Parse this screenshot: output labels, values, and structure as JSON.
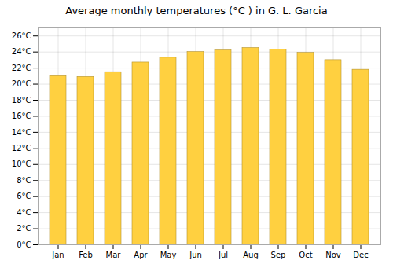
{
  "chart_data": {
    "type": "bar",
    "title": "Average monthly temperatures (°C ) in G. L. Garcia",
    "categories": [
      "Jan",
      "Feb",
      "Mar",
      "Apr",
      "May",
      "Jun",
      "Jul",
      "Aug",
      "Sep",
      "Oct",
      "Nov",
      "Dec"
    ],
    "values": [
      21.0,
      20.9,
      21.5,
      22.7,
      23.3,
      24.0,
      24.2,
      24.5,
      24.3,
      23.9,
      23.0,
      21.8
    ],
    "color": "#FFD040",
    "ylim": [
      0,
      27
    ],
    "yticks": [
      {
        "value": 0,
        "label": "0°C"
      },
      {
        "value": 2,
        "label": "2°C"
      },
      {
        "value": 4,
        "label": "4°C"
      },
      {
        "value": 6,
        "label": "6°C"
      },
      {
        "value": 8,
        "label": "8°C"
      },
      {
        "value": 10,
        "label": "10°C"
      },
      {
        "value": 12,
        "label": "12°C"
      },
      {
        "value": 14,
        "label": "14°C"
      },
      {
        "value": 16,
        "label": "16°C"
      },
      {
        "value": 18,
        "label": "18°C"
      },
      {
        "value": 20,
        "label": "20°C"
      },
      {
        "value": 22,
        "label": "22°C"
      },
      {
        "value": 24,
        "label": "24°C"
      },
      {
        "value": 26,
        "label": "26°C"
      }
    ],
    "grid": true
  }
}
